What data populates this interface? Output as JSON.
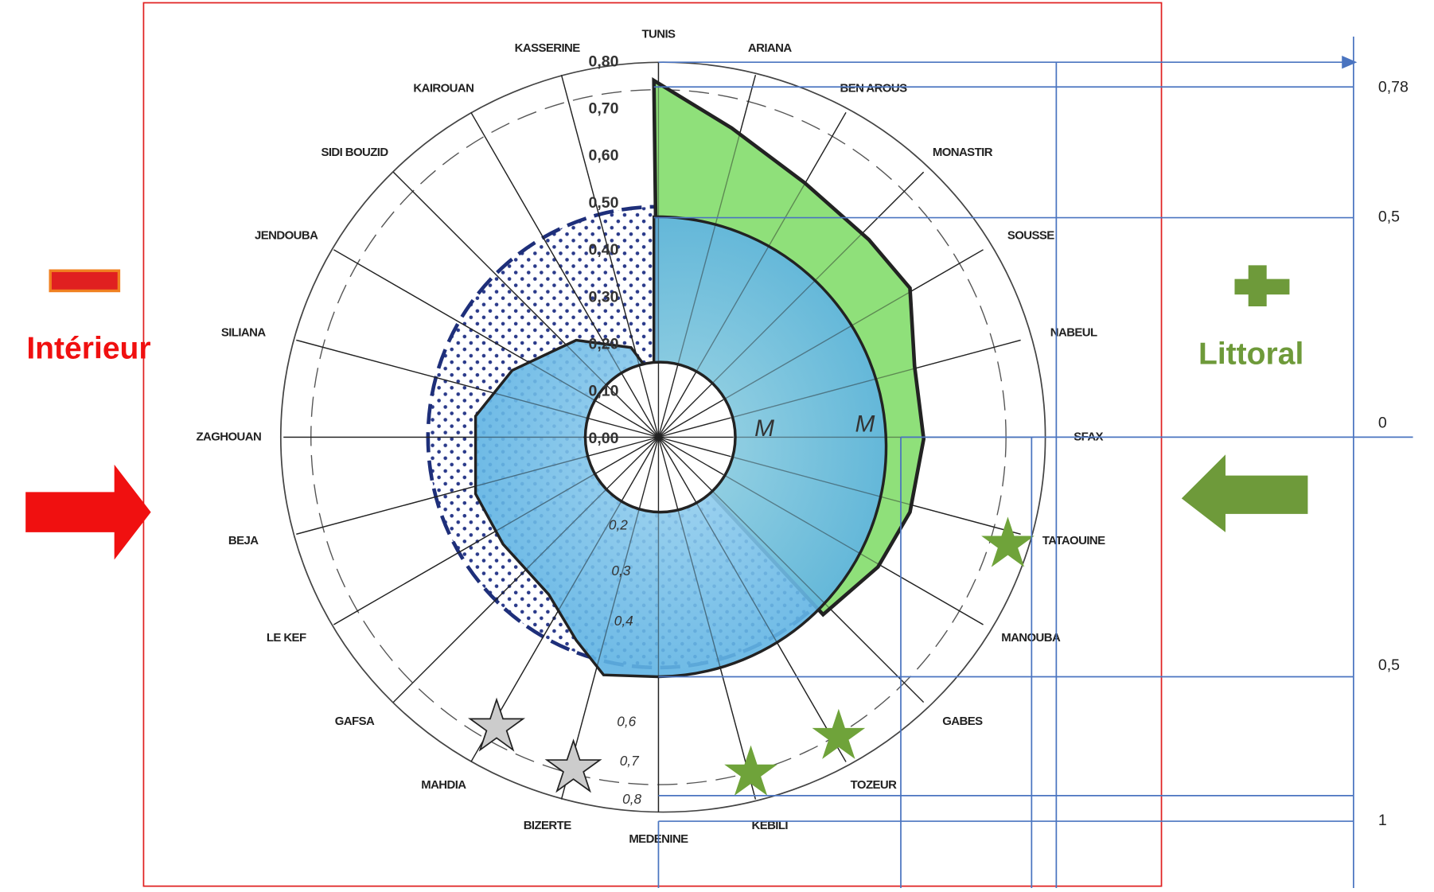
{
  "diagram": {
    "regions": [
      "TUNIS",
      "ARIANA",
      "BEN AROUS",
      "MONASTIR",
      "SOUSSE",
      "NABEUL",
      "SFAX",
      "TATAOUINE",
      "MANOUBA",
      "GABES",
      "TOZEUR",
      "KEBILI",
      "MEDENINE",
      "BIZERTE",
      "MAHDIA",
      "GAFSA",
      "LE KEF",
      "BEJA",
      "ZAGHOUAN",
      "SILIANA",
      "JENDOUBA",
      "SIDI BOUZID",
      "KAIROUAN",
      "KASSERINE"
    ],
    "scale_labels": [
      "0,80",
      "0,70",
      "0,60",
      "0,50",
      "0,40",
      "0,30",
      "0,20",
      "0,10",
      "0,00"
    ],
    "lower_scale_labels": [
      "0,2",
      "0,3",
      "0,4",
      "0,6",
      "0,7",
      "0,8"
    ],
    "marks": [
      "M",
      "M"
    ]
  },
  "annotations": {
    "left": "Intérieur",
    "right": "Littoral",
    "levels": [
      "0,78",
      "0,5",
      "0",
      "0,5",
      "1"
    ]
  }
}
